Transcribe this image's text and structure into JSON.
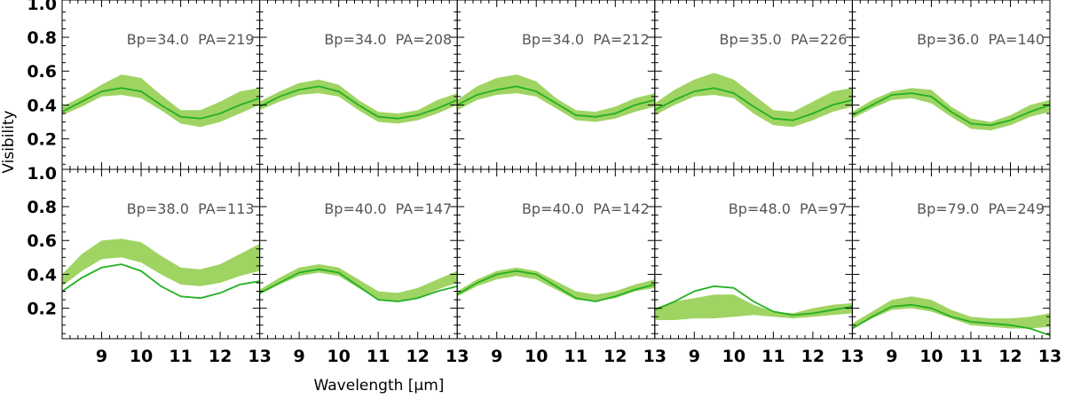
{
  "chart_data": {
    "type": "line",
    "layout": "small-multiples grid, 2 rows x 5 columns, shared axes",
    "xlabel": "Wavelength [μm]",
    "ylabel": "Visibility",
    "xlim": [
      8,
      13
    ],
    "ylim": [
      0.02,
      1.02
    ],
    "xticks": [
      9,
      10,
      11,
      12,
      13
    ],
    "yticks": [
      0.2,
      0.4,
      0.6,
      0.8,
      1.0
    ],
    "colors": {
      "band": "#9fd463",
      "line": "#22b022"
    },
    "x": [
      8.0,
      8.5,
      9.0,
      9.5,
      10.0,
      10.5,
      11.0,
      11.5,
      12.0,
      12.5,
      13.0
    ],
    "panels": [
      {
        "label": "Bp=34.0  PA=219",
        "line": [
          0.36,
          0.42,
          0.48,
          0.5,
          0.48,
          0.4,
          0.33,
          0.32,
          0.35,
          0.4,
          0.44
        ],
        "band_low": [
          0.34,
          0.39,
          0.45,
          0.46,
          0.44,
          0.37,
          0.29,
          0.27,
          0.3,
          0.35,
          0.4
        ],
        "band_high": [
          0.39,
          0.45,
          0.52,
          0.58,
          0.56,
          0.46,
          0.37,
          0.37,
          0.42,
          0.48,
          0.5
        ]
      },
      {
        "label": "Bp=34.0  PA=208",
        "line": [
          0.39,
          0.45,
          0.49,
          0.51,
          0.48,
          0.4,
          0.33,
          0.32,
          0.34,
          0.38,
          0.43
        ],
        "band_low": [
          0.37,
          0.42,
          0.46,
          0.47,
          0.45,
          0.37,
          0.3,
          0.29,
          0.31,
          0.35,
          0.4
        ],
        "band_high": [
          0.42,
          0.48,
          0.53,
          0.55,
          0.52,
          0.43,
          0.36,
          0.35,
          0.37,
          0.43,
          0.47
        ]
      },
      {
        "label": "Bp=34.0  PA=212",
        "line": [
          0.4,
          0.46,
          0.49,
          0.51,
          0.48,
          0.41,
          0.34,
          0.33,
          0.35,
          0.4,
          0.43
        ],
        "band_low": [
          0.37,
          0.43,
          0.46,
          0.47,
          0.45,
          0.38,
          0.31,
          0.3,
          0.32,
          0.36,
          0.39
        ],
        "band_high": [
          0.43,
          0.51,
          0.56,
          0.58,
          0.54,
          0.44,
          0.37,
          0.36,
          0.39,
          0.44,
          0.47
        ]
      },
      {
        "label": "Bp=35.0  PA=226",
        "line": [
          0.37,
          0.43,
          0.48,
          0.5,
          0.47,
          0.39,
          0.32,
          0.31,
          0.35,
          0.4,
          0.43
        ],
        "band_low": [
          0.34,
          0.4,
          0.45,
          0.46,
          0.44,
          0.35,
          0.28,
          0.27,
          0.31,
          0.36,
          0.39
        ],
        "band_high": [
          0.41,
          0.49,
          0.55,
          0.59,
          0.55,
          0.46,
          0.37,
          0.36,
          0.42,
          0.48,
          0.5
        ]
      },
      {
        "label": "Bp=36.0  PA=140",
        "line": [
          0.34,
          0.4,
          0.46,
          0.47,
          0.45,
          0.36,
          0.29,
          0.28,
          0.31,
          0.36,
          0.4
        ],
        "band_low": [
          0.32,
          0.38,
          0.43,
          0.44,
          0.41,
          0.33,
          0.26,
          0.25,
          0.28,
          0.33,
          0.36
        ],
        "band_high": [
          0.36,
          0.43,
          0.48,
          0.5,
          0.49,
          0.39,
          0.32,
          0.3,
          0.34,
          0.4,
          0.43
        ]
      },
      {
        "label": "Bp=38.0  PA=113",
        "line": [
          0.3,
          0.38,
          0.44,
          0.46,
          0.42,
          0.33,
          0.27,
          0.26,
          0.29,
          0.34,
          0.36
        ],
        "band_low": [
          0.33,
          0.42,
          0.49,
          0.5,
          0.47,
          0.4,
          0.34,
          0.33,
          0.35,
          0.39,
          0.42
        ],
        "band_high": [
          0.4,
          0.52,
          0.6,
          0.61,
          0.59,
          0.51,
          0.44,
          0.43,
          0.46,
          0.52,
          0.58
        ]
      },
      {
        "label": "Bp=40.0  PA=147",
        "line": [
          0.29,
          0.35,
          0.41,
          0.43,
          0.41,
          0.33,
          0.25,
          0.24,
          0.26,
          0.3,
          0.33
        ],
        "band_low": [
          0.28,
          0.34,
          0.39,
          0.41,
          0.39,
          0.32,
          0.25,
          0.24,
          0.26,
          0.31,
          0.35
        ],
        "band_high": [
          0.31,
          0.38,
          0.44,
          0.46,
          0.44,
          0.37,
          0.3,
          0.29,
          0.32,
          0.37,
          0.42
        ]
      },
      {
        "label": "Bp=40.0  PA=142",
        "line": [
          0.28,
          0.35,
          0.4,
          0.42,
          0.4,
          0.33,
          0.26,
          0.24,
          0.27,
          0.31,
          0.34
        ],
        "band_low": [
          0.27,
          0.33,
          0.37,
          0.39,
          0.37,
          0.31,
          0.25,
          0.24,
          0.26,
          0.3,
          0.32
        ],
        "band_high": [
          0.3,
          0.37,
          0.42,
          0.44,
          0.42,
          0.36,
          0.3,
          0.28,
          0.3,
          0.34,
          0.37
        ]
      },
      {
        "label": "Bp=48.0  PA=97",
        "line": [
          0.19,
          0.24,
          0.3,
          0.33,
          0.32,
          0.24,
          0.18,
          0.16,
          0.17,
          0.19,
          0.21
        ],
        "band_low": [
          0.13,
          0.13,
          0.14,
          0.14,
          0.15,
          0.16,
          0.15,
          0.14,
          0.15,
          0.16,
          0.17
        ],
        "band_high": [
          0.2,
          0.24,
          0.26,
          0.28,
          0.28,
          0.22,
          0.18,
          0.17,
          0.2,
          0.22,
          0.23
        ]
      },
      {
        "label": "Bp=79.0  PA=249",
        "line": [
          0.08,
          0.15,
          0.21,
          0.22,
          0.2,
          0.15,
          0.12,
          0.11,
          0.1,
          0.08,
          0.04
        ],
        "band_low": [
          0.08,
          0.14,
          0.19,
          0.2,
          0.18,
          0.14,
          0.1,
          0.09,
          0.08,
          0.08,
          0.09
        ],
        "band_high": [
          0.11,
          0.18,
          0.25,
          0.27,
          0.25,
          0.19,
          0.15,
          0.14,
          0.14,
          0.15,
          0.17
        ]
      }
    ]
  }
}
